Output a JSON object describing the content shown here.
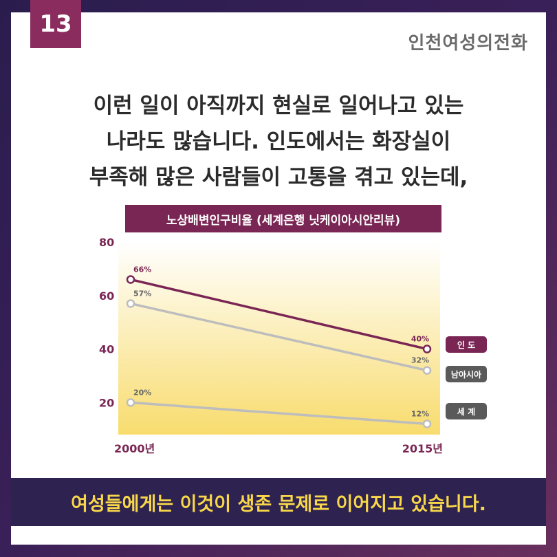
{
  "page_number": "13",
  "brand": "인천여성의전화",
  "headline": {
    "line1": "이런 일이 아직까지 현실로 일어나고 있는",
    "line2": "나라도 많습니다. 인도에서는 화장실이",
    "line3": "부족해 많은 사람들이 고통을 겪고 있는데,"
  },
  "footer": "여성들에게는 이것이 생존 문제로 이어지고 있습니다.",
  "colors": {
    "accent": "#7a2654",
    "navy": "#2e2250",
    "gray_line": "#bdbdbd",
    "legend_gray": "#5a5a5a",
    "footer_text": "#f8d84a"
  },
  "chart_data": {
    "type": "line",
    "title": "노상배변인구비율 (세계은행 닛케이아시안리뷰)",
    "categories": [
      "2000년",
      "2015년"
    ],
    "y_ticks": [
      20,
      40,
      60,
      80
    ],
    "ylim": [
      8,
      80
    ],
    "grid": false,
    "legend_placement": "right",
    "series": [
      {
        "name": "인 도",
        "values": [
          66,
          40
        ],
        "labels": [
          "66%",
          "40%"
        ],
        "color": "#7a2654"
      },
      {
        "name": "남아시아",
        "values": [
          57,
          32
        ],
        "labels": [
          "57%",
          "32%"
        ],
        "color": "#bdbdbd"
      },
      {
        "name": "세 계",
        "values": [
          20,
          12
        ],
        "labels": [
          "20%",
          "12%"
        ],
        "color": "#bdbdbd"
      }
    ]
  }
}
